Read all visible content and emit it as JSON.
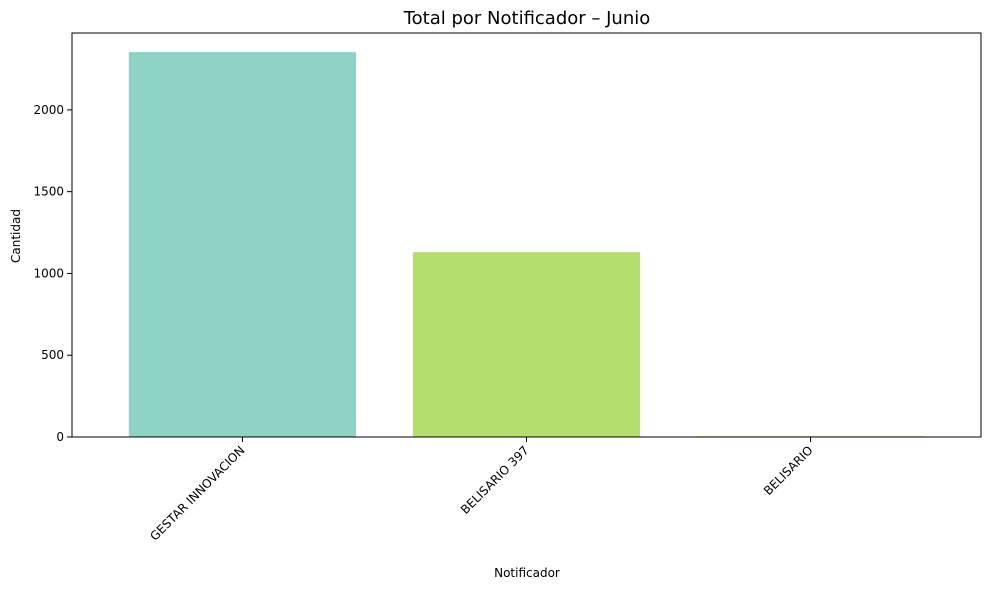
{
  "chart_data": {
    "type": "bar",
    "title": "Total por Notificador – Junio",
    "xlabel": "Notificador",
    "ylabel": "Cantidad",
    "categories": [
      "GESTAR INNOVACION",
      "BELISARIO 397",
      "BELISARIO"
    ],
    "values": [
      2353,
      1130,
      5
    ],
    "colors": [
      "#8fd3c7",
      "#b5df6c",
      "#f6c85f"
    ],
    "ylim": [
      0,
      2470
    ],
    "yticks": [
      0,
      500,
      1000,
      1500,
      2000
    ],
    "grid": false,
    "legend": "none"
  }
}
